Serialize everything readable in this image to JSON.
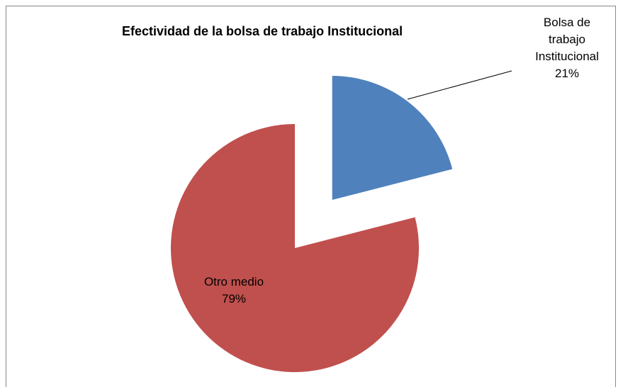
{
  "chart_data": {
    "type": "pie",
    "title": "Efectividad de la bolsa de trabajo Institucional",
    "categories": [
      "Bolsa de trabajo Institucional",
      "Otro medio"
    ],
    "values": [
      21,
      79
    ],
    "value_labels": [
      "21%",
      "79%"
    ],
    "colors": [
      "#4f81bd",
      "#c0504d"
    ],
    "exploded": [
      true,
      false
    ]
  }
}
